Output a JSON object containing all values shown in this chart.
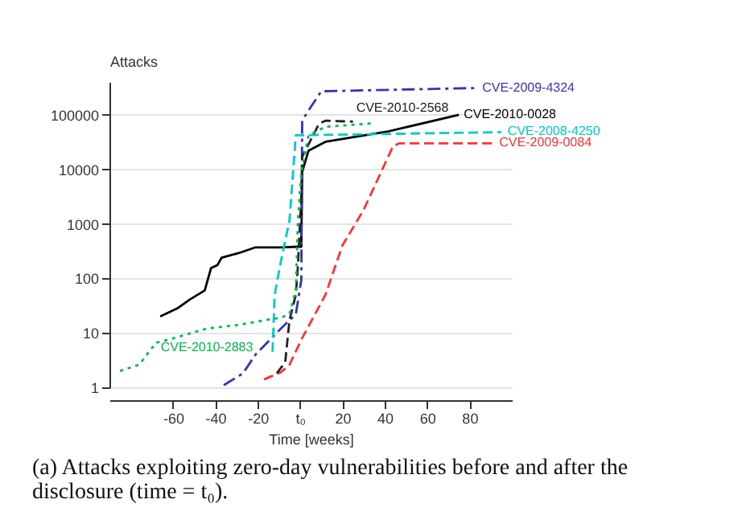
{
  "chart_data": {
    "type": "line",
    "ylabel": "Attacks",
    "xlabel": "Time [weeks]",
    "log": "y",
    "grid": "y",
    "xlim": [
      -90,
      100
    ],
    "xticks": [
      -60,
      -40,
      -20,
      {
        "value": 0,
        "label": "t₀"
      },
      20,
      40,
      60,
      80
    ],
    "ylim": [
      1,
      400000
    ],
    "yticks": [
      1,
      10,
      100,
      1000,
      10000,
      100000
    ],
    "annotations": [
      "(a) Attacks exploiting zero-day vulnerabilities before and after the disclosure (time = t₀)."
    ],
    "series": [
      {
        "name": "CVE-2010-0028",
        "color": "#000000",
        "line_style": "solid",
        "x": [
          -66,
          -58,
          -52,
          -45,
          -42,
          -39,
          -37,
          -29,
          -21,
          -9,
          -1,
          0.6,
          1,
          4,
          12,
          42,
          75
        ],
        "values": [
          20,
          28,
          41,
          60,
          155,
          175,
          240,
          290,
          370,
          370,
          380,
          380,
          9000,
          22000,
          32000,
          50000,
          100000
        ]
      },
      {
        "name": "CVE-2009-4324",
        "color": "#3333bb",
        "line_style": "dashdot",
        "x": [
          -36,
          -27,
          -21,
          -9,
          -2,
          0.6,
          1,
          4,
          10,
          83
        ],
        "values": [
          1.1,
          1.8,
          4,
          12,
          22,
          93,
          78000,
          120000,
          270000,
          310000
        ]
      },
      {
        "name": "CVE-2008-4250",
        "color": "#00cccc",
        "line_style": "dashed",
        "x": [
          -13,
          -12,
          -9,
          -5,
          -2,
          95
        ],
        "values": [
          4.5,
          50,
          210,
          1150,
          42000,
          48000
        ]
      },
      {
        "name": "CVE-2009-0084",
        "color": "#ff3333",
        "line_style": "dashed",
        "x": [
          -17,
          -9,
          -5,
          0.6,
          12,
          20,
          30,
          44,
          47,
          91
        ],
        "values": [
          1.4,
          1.9,
          2.6,
          7.5,
          50,
          400,
          1800,
          27000,
          30000,
          30000
        ]
      },
      {
        "name": "CVE-2010-2568",
        "color": "#222222",
        "line_style": "dashed",
        "x": [
          -11,
          -7,
          -5,
          -2,
          -1,
          0.6,
          1,
          9,
          12,
          25
        ],
        "values": [
          1.8,
          2.9,
          17,
          50,
          170,
          3300,
          17000,
          69000,
          78000,
          75000
        ]
      },
      {
        "name": "CVE-2010-2883",
        "color": "#00bb44",
        "line_style": "dotted",
        "x": [
          -85,
          -76,
          -68,
          -62,
          -44,
          -29,
          -17,
          -9,
          -5,
          -2,
          -1,
          0.6,
          4,
          12,
          35
        ],
        "values": [
          2,
          2.6,
          6.6,
          7.5,
          12,
          14,
          17,
          19,
          22,
          60,
          1150,
          9000,
          42000,
          60000,
          70000
        ]
      }
    ]
  }
}
